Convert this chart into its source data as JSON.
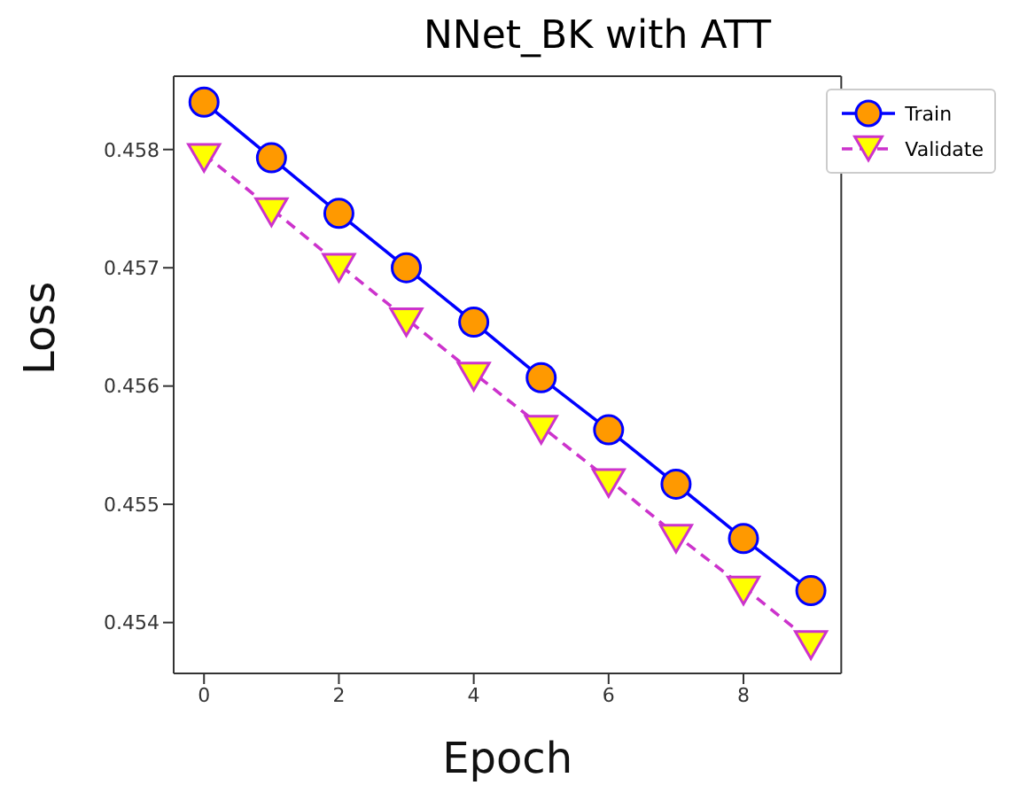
{
  "chart_data": {
    "type": "line",
    "title": "NNet_BK with ATT",
    "xlabel": "Epoch",
    "ylabel": "Loss",
    "x": [
      0,
      1,
      2,
      3,
      4,
      5,
      6,
      7,
      8,
      9
    ],
    "series": [
      {
        "name": "Train",
        "color": "#0000ff",
        "marker": "circle",
        "line_style": "solid",
        "values": [
          0.4584,
          0.45793,
          0.45746,
          0.457,
          0.45654,
          0.45607,
          0.45563,
          0.45517,
          0.45471,
          0.45427
        ]
      },
      {
        "name": "Validate",
        "color": "#cc33cc",
        "marker": "triangle",
        "line_style": "dashed",
        "values": [
          0.45796,
          0.4575,
          0.45703,
          0.45657,
          0.45611,
          0.45566,
          0.45521,
          0.45474,
          0.4543,
          0.45384
        ]
      }
    ],
    "xlim": [
      -0.45,
      9.45
    ],
    "xticks": [
      0,
      2,
      4,
      6,
      8
    ],
    "ylim": [
      0.45357,
      0.45862
    ],
    "yticks": [
      0.454,
      0.455,
      0.456,
      0.457,
      0.458
    ],
    "grid": false,
    "legend": "top right"
  }
}
